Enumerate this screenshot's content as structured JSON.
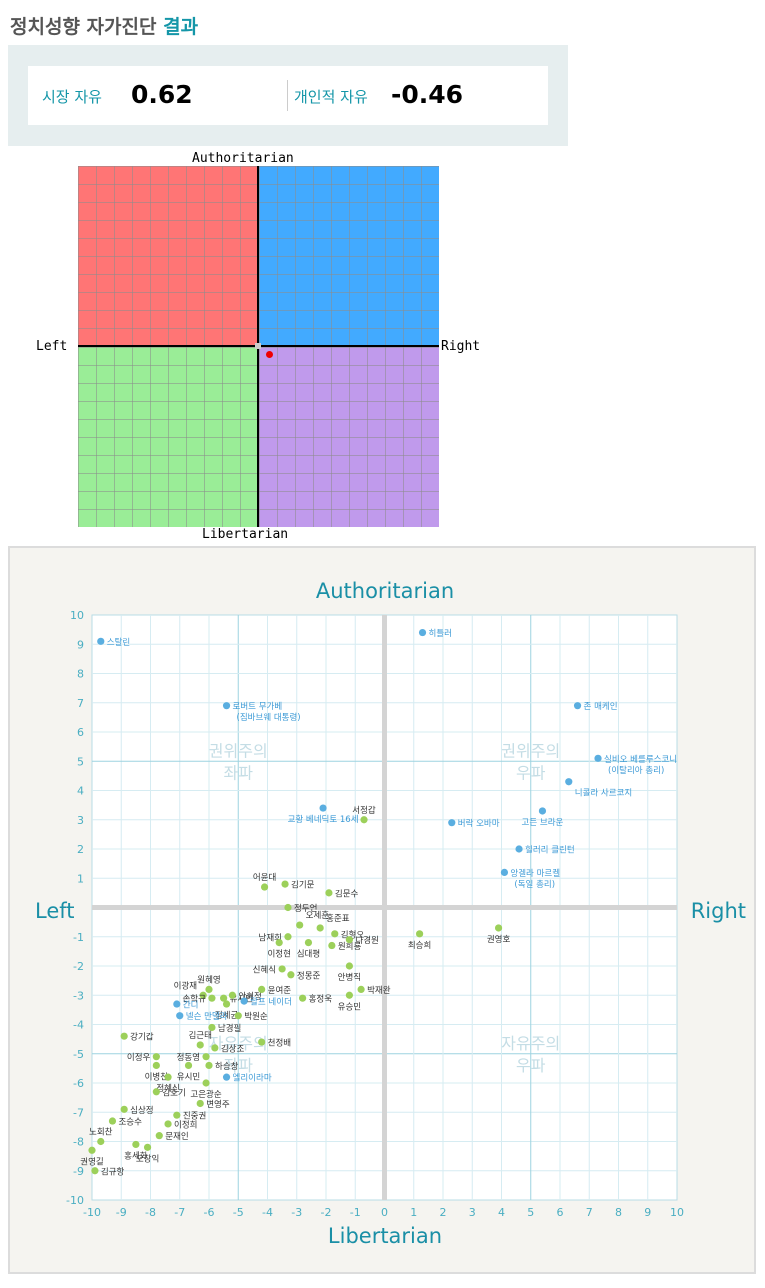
{
  "title": {
    "main": "정치성향 자가진단",
    "accent": "결과"
  },
  "scores": {
    "market_label": "시장 자유",
    "market_value": "0.62",
    "personal_label": "개인적 자유",
    "personal_value": "-0.46"
  },
  "compass": {
    "top": "Authoritarian",
    "bottom": "Libertarian",
    "left": "Left",
    "right": "Right",
    "colors": {
      "top_left": "#ff7575",
      "top_right": "#42aaff",
      "bottom_left": "#9aed97",
      "bottom_right": "#c09aec"
    },
    "user_point": {
      "economic": 0.62,
      "social": -0.46
    }
  },
  "chart_data": {
    "type": "scatter",
    "title": "Authoritarian",
    "xlabel": "Libertarian",
    "axis_left": "Left",
    "axis_right": "Right",
    "xlim": [
      -10,
      10
    ],
    "ylim": [
      -10,
      10
    ],
    "ticks": [
      -10,
      -9,
      -8,
      -7,
      -6,
      -5,
      -4,
      -3,
      -2,
      -1,
      0,
      1,
      2,
      3,
      4,
      5,
      6,
      7,
      8,
      9,
      10
    ],
    "grid": true,
    "quadrants": [
      {
        "line1": "권위주의",
        "line2": "좌파",
        "x": -5,
        "y": 5
      },
      {
        "line1": "권위주의",
        "line2": "우파",
        "x": 5,
        "y": 5
      },
      {
        "line1": "자유주의",
        "line2": "좌파",
        "x": -5,
        "y": -5
      },
      {
        "line1": "자유주의",
        "line2": "우파",
        "x": 5,
        "y": -5
      }
    ],
    "colors": {
      "domestic": "#9cd05a",
      "foreign": "#5aaee0",
      "label": "#333333",
      "foreign_label": "#3c9ad6",
      "axis": "#4aaec2",
      "title": "#1a8fa6"
    },
    "points": [
      {
        "name": "스탈린",
        "x": -9.7,
        "y": 9.1,
        "kind": "foreign",
        "ax": "start"
      },
      {
        "name": "히틀러",
        "x": 1.3,
        "y": 9.4,
        "kind": "foreign",
        "ax": "start"
      },
      {
        "name": "로버트 무가베",
        "name2": "(짐바브웨 대통령)",
        "x": -5.4,
        "y": 6.9,
        "kind": "foreign",
        "ax": "start"
      },
      {
        "name": "존 매케인",
        "x": 6.6,
        "y": 6.9,
        "kind": "foreign",
        "ax": "start"
      },
      {
        "name": "실비오 베를루스코니",
        "name2": "(이탈리아 총리)",
        "x": 7.3,
        "y": 5.1,
        "kind": "foreign",
        "ax": "start"
      },
      {
        "name": "니콜라 사르코지",
        "x": 6.3,
        "y": 4.3,
        "kind": "foreign",
        "ax": "start",
        "below": true
      },
      {
        "name": "교황 베네딕토 16세",
        "x": -2.1,
        "y": 3.4,
        "kind": "foreign",
        "ax": "middle",
        "below": true
      },
      {
        "name": "서정갑",
        "x": -0.7,
        "y": 3.0,
        "kind": "domestic",
        "ax": "middle",
        "above": true
      },
      {
        "name": "버락 오바마",
        "x": 2.3,
        "y": 2.9,
        "kind": "foreign",
        "ax": "start"
      },
      {
        "name": "고든 브라운",
        "x": 5.4,
        "y": 3.3,
        "kind": "foreign",
        "ax": "middle",
        "below": true
      },
      {
        "name": "힐러리 클린턴",
        "x": 4.6,
        "y": 2.0,
        "kind": "foreign",
        "ax": "start"
      },
      {
        "name": "앙겔라 마르켈",
        "name2": "(독일 총리)",
        "x": 4.1,
        "y": 1.2,
        "kind": "foreign",
        "ax": "start"
      },
      {
        "name": "어윤대",
        "x": -4.1,
        "y": 0.7,
        "kind": "domestic",
        "ax": "middle",
        "above": true
      },
      {
        "name": "김기문",
        "x": -3.4,
        "y": 0.8,
        "kind": "domestic",
        "ax": "start"
      },
      {
        "name": "김문수",
        "x": -1.9,
        "y": 0.5,
        "kind": "domestic",
        "ax": "start"
      },
      {
        "name": "정두언",
        "x": -3.3,
        "y": 0.0,
        "kind": "domestic",
        "ax": "start"
      },
      {
        "name": "오세훈",
        "x": -2.9,
        "y": -0.6,
        "kind": "domestic",
        "ax": "start",
        "above": true
      },
      {
        "name": "홍준표",
        "x": -2.2,
        "y": -0.7,
        "kind": "domestic",
        "ax": "start",
        "above": true
      },
      {
        "name": "남재희",
        "x": -3.3,
        "y": -1.0,
        "kind": "domestic",
        "ax": "end"
      },
      {
        "name": "김형오",
        "x": -1.7,
        "y": -0.9,
        "kind": "domestic",
        "ax": "start"
      },
      {
        "name": "원희룡",
        "x": -1.8,
        "y": -1.3,
        "kind": "domestic",
        "ax": "start"
      },
      {
        "name": "나경원",
        "x": -1.2,
        "y": -1.1,
        "kind": "domestic",
        "ax": "start"
      },
      {
        "name": "이정현",
        "x": -3.6,
        "y": -1.2,
        "kind": "domestic",
        "ax": "middle",
        "below": true
      },
      {
        "name": "심대평",
        "x": -2.6,
        "y": -1.2,
        "kind": "domestic",
        "ax": "middle",
        "below": true
      },
      {
        "name": "최승희",
        "x": 1.2,
        "y": -0.9,
        "kind": "domestic",
        "ax": "middle",
        "below": true
      },
      {
        "name": "권영호",
        "x": 3.9,
        "y": -0.7,
        "kind": "domestic",
        "ax": "middle",
        "below": true
      },
      {
        "name": "안병직",
        "x": -1.2,
        "y": -2.0,
        "kind": "domestic",
        "ax": "middle",
        "below": true
      },
      {
        "name": "신혜식",
        "x": -3.5,
        "y": -2.1,
        "kind": "domestic",
        "ax": "end"
      },
      {
        "name": "정몽준",
        "x": -3.2,
        "y": -2.3,
        "kind": "domestic",
        "ax": "start"
      },
      {
        "name": "원혜영",
        "x": -6.0,
        "y": -2.8,
        "kind": "domestic",
        "ax": "middle",
        "above": true
      },
      {
        "name": "이광재",
        "x": -6.2,
        "y": -3.0,
        "kind": "domestic",
        "ax": "end",
        "above": true
      },
      {
        "name": "손학규",
        "x": -5.9,
        "y": -3.1,
        "kind": "domestic",
        "ax": "end"
      },
      {
        "name": "유시민",
        "x": -5.5,
        "y": -3.1,
        "kind": "domestic",
        "ax": "start"
      },
      {
        "name": "안희정",
        "x": -5.2,
        "y": -3.0,
        "kind": "domestic",
        "ax": "start"
      },
      {
        "name": "윤여준",
        "x": -4.2,
        "y": -2.8,
        "kind": "domestic",
        "ax": "start"
      },
      {
        "name": "박재완",
        "x": -0.8,
        "y": -2.8,
        "kind": "domestic",
        "ax": "start"
      },
      {
        "name": "홍정욱",
        "x": -2.8,
        "y": -3.1,
        "kind": "domestic",
        "ax": "start"
      },
      {
        "name": "유승민",
        "x": -1.2,
        "y": -3.0,
        "kind": "domestic",
        "ax": "middle",
        "below": true
      },
      {
        "name": "간디",
        "x": -7.1,
        "y": -3.3,
        "kind": "foreign",
        "ax": "start"
      },
      {
        "name": "정세균",
        "x": -5.4,
        "y": -3.3,
        "kind": "domestic",
        "ax": "middle",
        "below": true
      },
      {
        "name": "랄프 네이더",
        "x": -4.8,
        "y": -3.2,
        "kind": "foreign",
        "ax": "start"
      },
      {
        "name": "넬슨 만델라",
        "x": -7.0,
        "y": -3.7,
        "kind": "foreign",
        "ax": "start"
      },
      {
        "name": "박원순",
        "x": -5.0,
        "y": -3.7,
        "kind": "domestic",
        "ax": "start"
      },
      {
        "name": "남경필",
        "x": -5.9,
        "y": -4.1,
        "kind": "domestic",
        "ax": "start"
      },
      {
        "name": "강기갑",
        "x": -8.9,
        "y": -4.4,
        "kind": "domestic",
        "ax": "start"
      },
      {
        "name": "김근태",
        "x": -6.3,
        "y": -4.7,
        "kind": "domestic",
        "ax": "middle",
        "above": true
      },
      {
        "name": "김상조",
        "x": -5.8,
        "y": -4.8,
        "kind": "domestic",
        "ax": "start"
      },
      {
        "name": "천정배",
        "x": -4.2,
        "y": -4.6,
        "kind": "domestic",
        "ax": "start"
      },
      {
        "name": "이정우",
        "x": -7.8,
        "y": -5.1,
        "kind": "domestic",
        "ax": "end"
      },
      {
        "name": "정동영",
        "x": -6.1,
        "y": -5.1,
        "kind": "domestic",
        "ax": "end"
      },
      {
        "name": "하승창",
        "x": -6.0,
        "y": -5.4,
        "kind": "domestic",
        "ax": "start"
      },
      {
        "name": "유시민",
        "x": -6.7,
        "y": -5.4,
        "kind": "domestic",
        "ax": "middle",
        "below": true
      },
      {
        "name": "엘리이라마",
        "x": -5.4,
        "y": -5.8,
        "kind": "foreign",
        "ax": "start"
      },
      {
        "name": "이병천",
        "x": -7.8,
        "y": -5.4,
        "kind": "domestic",
        "ax": "middle",
        "below": true
      },
      {
        "name": "정혜신",
        "x": -7.4,
        "y": -5.8,
        "kind": "domestic",
        "ax": "middle",
        "below": true
      },
      {
        "name": "김호기",
        "x": -7.8,
        "y": -6.3,
        "kind": "domestic",
        "ax": "start"
      },
      {
        "name": "고은광순",
        "x": -6.1,
        "y": -6.0,
        "kind": "domestic",
        "ax": "middle",
        "below": true
      },
      {
        "name": "변영주",
        "x": -6.3,
        "y": -6.7,
        "kind": "domestic",
        "ax": "start"
      },
      {
        "name": "심상정",
        "x": -8.9,
        "y": -6.9,
        "kind": "domestic",
        "ax": "start"
      },
      {
        "name": "진중권",
        "x": -7.1,
        "y": -7.1,
        "kind": "domestic",
        "ax": "start"
      },
      {
        "name": "조승수",
        "x": -9.3,
        "y": -7.3,
        "kind": "domestic",
        "ax": "start"
      },
      {
        "name": "이정희",
        "x": -7.4,
        "y": -7.4,
        "kind": "domestic",
        "ax": "start"
      },
      {
        "name": "노회찬",
        "x": -9.7,
        "y": -8.0,
        "kind": "domestic",
        "ax": "middle",
        "above": true
      },
      {
        "name": "문재인",
        "x": -7.7,
        "y": -7.8,
        "kind": "domestic",
        "ax": "start"
      },
      {
        "name": "홍세화",
        "x": -8.5,
        "y": -8.1,
        "kind": "domestic",
        "ax": "middle",
        "below": true
      },
      {
        "name": "오창익",
        "x": -8.1,
        "y": -8.2,
        "kind": "domestic",
        "ax": "middle",
        "below": true
      },
      {
        "name": "권영길",
        "x": -10.0,
        "y": -8.3,
        "kind": "domestic",
        "ax": "middle",
        "below": true
      },
      {
        "name": "김규항",
        "x": -9.9,
        "y": -9.0,
        "kind": "domestic",
        "ax": "start"
      }
    ]
  }
}
